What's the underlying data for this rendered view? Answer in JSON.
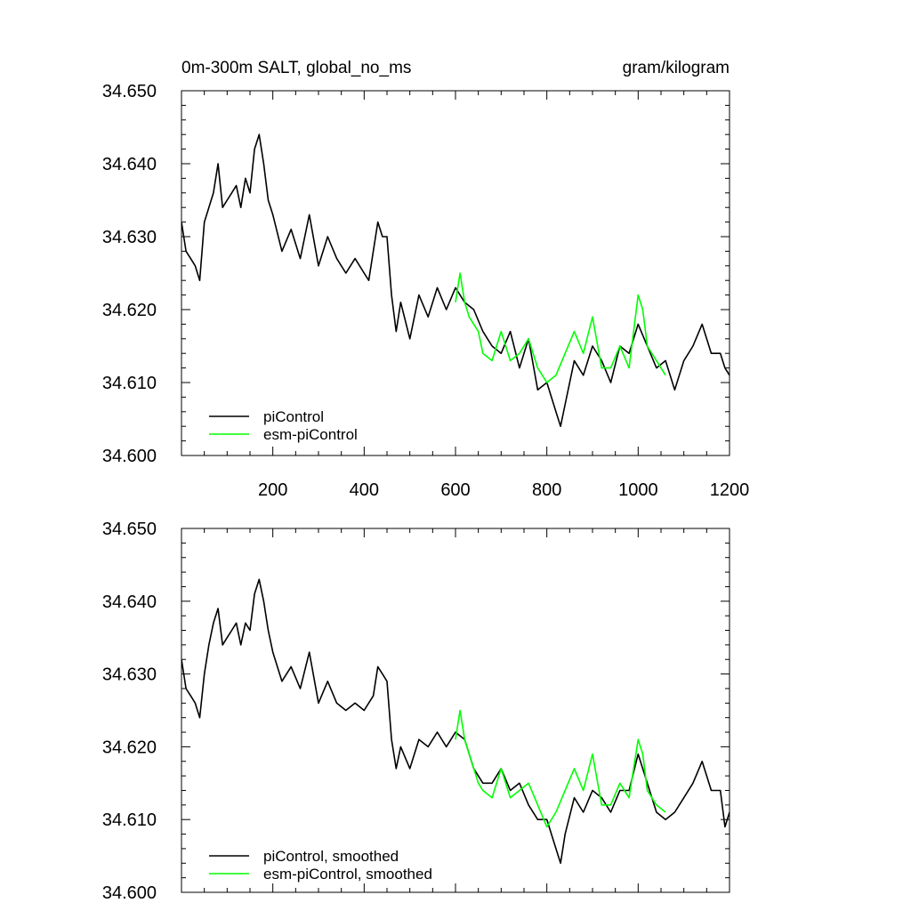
{
  "figure": {
    "title_left": "0m-300m SALT, global_no_ms",
    "title_right": "gram/kilogram"
  },
  "chart_data": [
    {
      "type": "line",
      "title": "0m-300m SALT, global_no_ms",
      "units": "gram/kilogram",
      "xlim": [
        0,
        1200
      ],
      "ylim": [
        34.6,
        34.65
      ],
      "x_ticks": [
        200,
        400,
        600,
        800,
        1000,
        1200
      ],
      "y_ticks": [
        "34.600",
        "34.610",
        "34.620",
        "34.630",
        "34.640",
        "34.650"
      ],
      "legend_position": "bottom-left",
      "series": [
        {
          "name": "piControl",
          "color": "#000000",
          "x": [
            0,
            10,
            20,
            30,
            40,
            50,
            60,
            70,
            80,
            90,
            100,
            110,
            120,
            130,
            140,
            150,
            160,
            170,
            180,
            190,
            200,
            220,
            240,
            260,
            280,
            300,
            320,
            340,
            360,
            380,
            400,
            410,
            420,
            430,
            440,
            450,
            460,
            470,
            480,
            500,
            520,
            540,
            560,
            580,
            600,
            620,
            640,
            660,
            680,
            700,
            720,
            740,
            760,
            780,
            800,
            820,
            830,
            840,
            860,
            880,
            900,
            920,
            940,
            960,
            980,
            1000,
            1020,
            1040,
            1060,
            1080,
            1100,
            1120,
            1140,
            1160,
            1180,
            1190,
            1200
          ],
          "values": [
            34.632,
            34.628,
            34.627,
            34.626,
            34.624,
            34.632,
            34.634,
            34.636,
            34.64,
            34.634,
            34.635,
            34.636,
            34.637,
            34.634,
            34.638,
            34.636,
            34.642,
            34.644,
            34.64,
            34.635,
            34.633,
            34.628,
            34.631,
            34.627,
            34.633,
            34.626,
            34.63,
            34.627,
            34.625,
            34.627,
            34.625,
            34.624,
            34.628,
            34.632,
            34.63,
            34.63,
            34.622,
            34.617,
            34.621,
            34.616,
            34.622,
            34.619,
            34.623,
            34.62,
            34.623,
            34.621,
            34.62,
            34.617,
            34.615,
            34.614,
            34.617,
            34.612,
            34.616,
            34.609,
            34.61,
            34.606,
            34.604,
            34.607,
            34.613,
            34.611,
            34.615,
            34.613,
            34.61,
            34.615,
            34.614,
            34.618,
            34.615,
            34.612,
            34.613,
            34.609,
            34.613,
            34.615,
            34.618,
            34.614,
            34.614,
            34.612,
            34.611
          ]
        },
        {
          "name": "esm-piControl",
          "color": "#00ff00",
          "x": [
            600,
            610,
            620,
            630,
            640,
            650,
            660,
            680,
            700,
            720,
            740,
            760,
            780,
            800,
            820,
            840,
            860,
            880,
            900,
            920,
            940,
            960,
            980,
            1000,
            1010,
            1020,
            1040,
            1060
          ],
          "values": [
            34.621,
            34.625,
            34.621,
            34.619,
            34.618,
            34.617,
            34.614,
            34.613,
            34.617,
            34.613,
            34.614,
            34.616,
            34.612,
            34.61,
            34.611,
            34.614,
            34.617,
            34.614,
            34.619,
            34.612,
            34.612,
            34.615,
            34.612,
            34.622,
            34.62,
            34.615,
            34.613,
            34.611
          ]
        }
      ]
    },
    {
      "type": "line",
      "xlim": [
        0,
        1200
      ],
      "ylim": [
        34.6,
        34.65
      ],
      "x_ticks": [
        200,
        400,
        600,
        800,
        1000,
        1200
      ],
      "y_ticks": [
        "34.600",
        "34.610",
        "34.620",
        "34.630",
        "34.640",
        "34.650"
      ],
      "legend_position": "bottom-left",
      "series": [
        {
          "name": "piControl, smoothed",
          "color": "#000000",
          "x": [
            0,
            10,
            20,
            30,
            40,
            50,
            60,
            70,
            80,
            90,
            100,
            110,
            120,
            130,
            140,
            150,
            160,
            170,
            180,
            190,
            200,
            220,
            240,
            260,
            280,
            300,
            320,
            340,
            360,
            380,
            400,
            420,
            430,
            440,
            450,
            460,
            470,
            480,
            500,
            520,
            540,
            560,
            580,
            600,
            620,
            640,
            660,
            680,
            700,
            720,
            740,
            760,
            780,
            800,
            820,
            830,
            840,
            860,
            880,
            900,
            920,
            940,
            960,
            980,
            1000,
            1020,
            1040,
            1060,
            1080,
            1100,
            1120,
            1140,
            1160,
            1180,
            1190,
            1200
          ],
          "values": [
            34.632,
            34.628,
            34.627,
            34.626,
            34.624,
            34.63,
            34.634,
            34.637,
            34.639,
            34.634,
            34.635,
            34.636,
            34.637,
            34.634,
            34.637,
            34.636,
            34.641,
            34.643,
            34.64,
            34.636,
            34.633,
            34.629,
            34.631,
            34.628,
            34.633,
            34.626,
            34.629,
            34.626,
            34.625,
            34.626,
            34.625,
            34.627,
            34.631,
            34.63,
            34.629,
            34.621,
            34.617,
            34.62,
            34.617,
            34.621,
            34.62,
            34.622,
            34.62,
            34.622,
            34.621,
            34.617,
            34.615,
            34.615,
            34.617,
            34.614,
            34.615,
            34.612,
            34.61,
            34.61,
            34.606,
            34.604,
            34.608,
            34.613,
            34.611,
            34.614,
            34.613,
            34.611,
            34.614,
            34.614,
            34.619,
            34.615,
            34.611,
            34.61,
            34.611,
            34.613,
            34.615,
            34.618,
            34.614,
            34.614,
            34.609,
            34.611
          ]
        },
        {
          "name": "esm-piControl, smoothed",
          "color": "#00ff00",
          "x": [
            600,
            610,
            620,
            630,
            640,
            650,
            660,
            680,
            700,
            720,
            740,
            760,
            780,
            800,
            820,
            840,
            860,
            880,
            900,
            920,
            940,
            960,
            980,
            1000,
            1010,
            1020,
            1040,
            1060
          ],
          "values": [
            34.621,
            34.625,
            34.621,
            34.619,
            34.617,
            34.615,
            34.614,
            34.613,
            34.617,
            34.613,
            34.614,
            34.615,
            34.612,
            34.609,
            34.611,
            34.614,
            34.617,
            34.614,
            34.619,
            34.612,
            34.612,
            34.615,
            34.613,
            34.621,
            34.619,
            34.614,
            34.612,
            34.611
          ]
        }
      ]
    }
  ]
}
